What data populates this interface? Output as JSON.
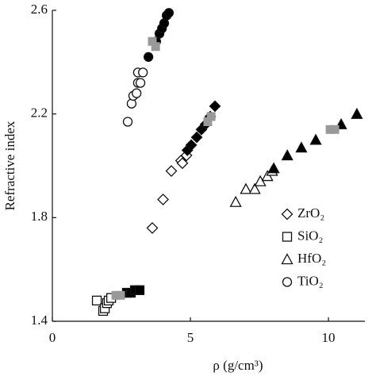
{
  "chart_data": {
    "type": "scatter",
    "x_label": "ρ (g/cm³)",
    "y_label": "Refractive index",
    "xlim": [
      0,
      11.32
    ],
    "ylim": [
      1.4,
      2.6
    ],
    "xticks": [
      0,
      5,
      10
    ],
    "yticks": [
      1.4,
      1.8,
      2.2,
      2.6
    ],
    "legend": "lower right",
    "series": [
      {
        "name": "ZrO₂",
        "marker": "diamond",
        "color": "#111",
        "groups": [
          {
            "fill": "#ffffff",
            "x": [
              3.62,
              4.01,
              4.31,
              4.66,
              4.71,
              4.86
            ],
            "y": [
              1.76,
              1.87,
              1.98,
              2.02,
              2.01,
              2.04
            ]
          },
          {
            "fill": "#000000",
            "x": [
              4.89,
              5.03,
              5.23,
              5.4,
              5.55,
              5.72,
              5.89
            ],
            "y": [
              2.06,
              2.08,
              2.11,
              2.14,
              2.16,
              2.19,
              2.23
            ]
          },
          {
            "fill": "#999999",
            "marker": "square",
            "x": [
              5.63,
              5.75
            ],
            "y": [
              2.17,
              2.19
            ]
          }
        ]
      },
      {
        "name": "SiO₂",
        "marker": "square",
        "color": "#111",
        "groups": [
          {
            "fill": "#ffffff",
            "x": [
              1.61,
              1.84,
              1.9,
              1.98,
              2.04,
              2.13
            ],
            "y": [
              1.48,
              1.44,
              1.45,
              1.47,
              1.48,
              1.49
            ]
          },
          {
            "fill": "#000000",
            "x": [
              2.7,
              2.84,
              2.99,
              3.16
            ],
            "y": [
              1.51,
              1.51,
              1.52,
              1.52
            ]
          },
          {
            "fill": "#999999",
            "marker": "square",
            "x": [
              2.3,
              2.47
            ],
            "y": [
              1.5,
              1.5
            ]
          }
        ]
      },
      {
        "name": "HfO₂",
        "marker": "triangle",
        "color": "#111",
        "groups": [
          {
            "fill": "#ffffff",
            "x": [
              6.64,
              7.01,
              7.33,
              7.53,
              7.79,
              7.96
            ],
            "y": [
              1.86,
              1.91,
              1.91,
              1.94,
              1.96,
              1.98
            ]
          },
          {
            "fill": "#000000",
            "x": [
              8.02,
              8.51,
              9.02,
              9.54,
              10.46,
              11.03
            ],
            "y": [
              1.99,
              2.04,
              2.07,
              2.1,
              2.16,
              2.2
            ]
          },
          {
            "fill": "#999999",
            "marker": "square",
            "x": [
              10.06,
              10.23
            ],
            "y": [
              2.14,
              2.14
            ]
          }
        ]
      },
      {
        "name": "TiO₂",
        "marker": "circle",
        "color": "#111",
        "groups": [
          {
            "fill": "#ffffff",
            "x": [
              2.73,
              2.87,
              2.93,
              3.05,
              3.1,
              3.19,
              3.1,
              3.28
            ],
            "y": [
              2.17,
              2.24,
              2.27,
              2.28,
              2.32,
              2.32,
              2.36,
              2.36
            ]
          },
          {
            "fill": "#000000",
            "x": [
              3.48,
              3.76,
              3.88,
              3.97,
              4.05,
              4.14,
              4.22
            ],
            "y": [
              2.42,
              2.48,
              2.51,
              2.53,
              2.55,
              2.58,
              2.59
            ]
          },
          {
            "fill": "#999999",
            "marker": "square",
            "x": [
              3.62,
              3.74
            ],
            "y": [
              2.48,
              2.46
            ]
          }
        ]
      }
    ]
  }
}
